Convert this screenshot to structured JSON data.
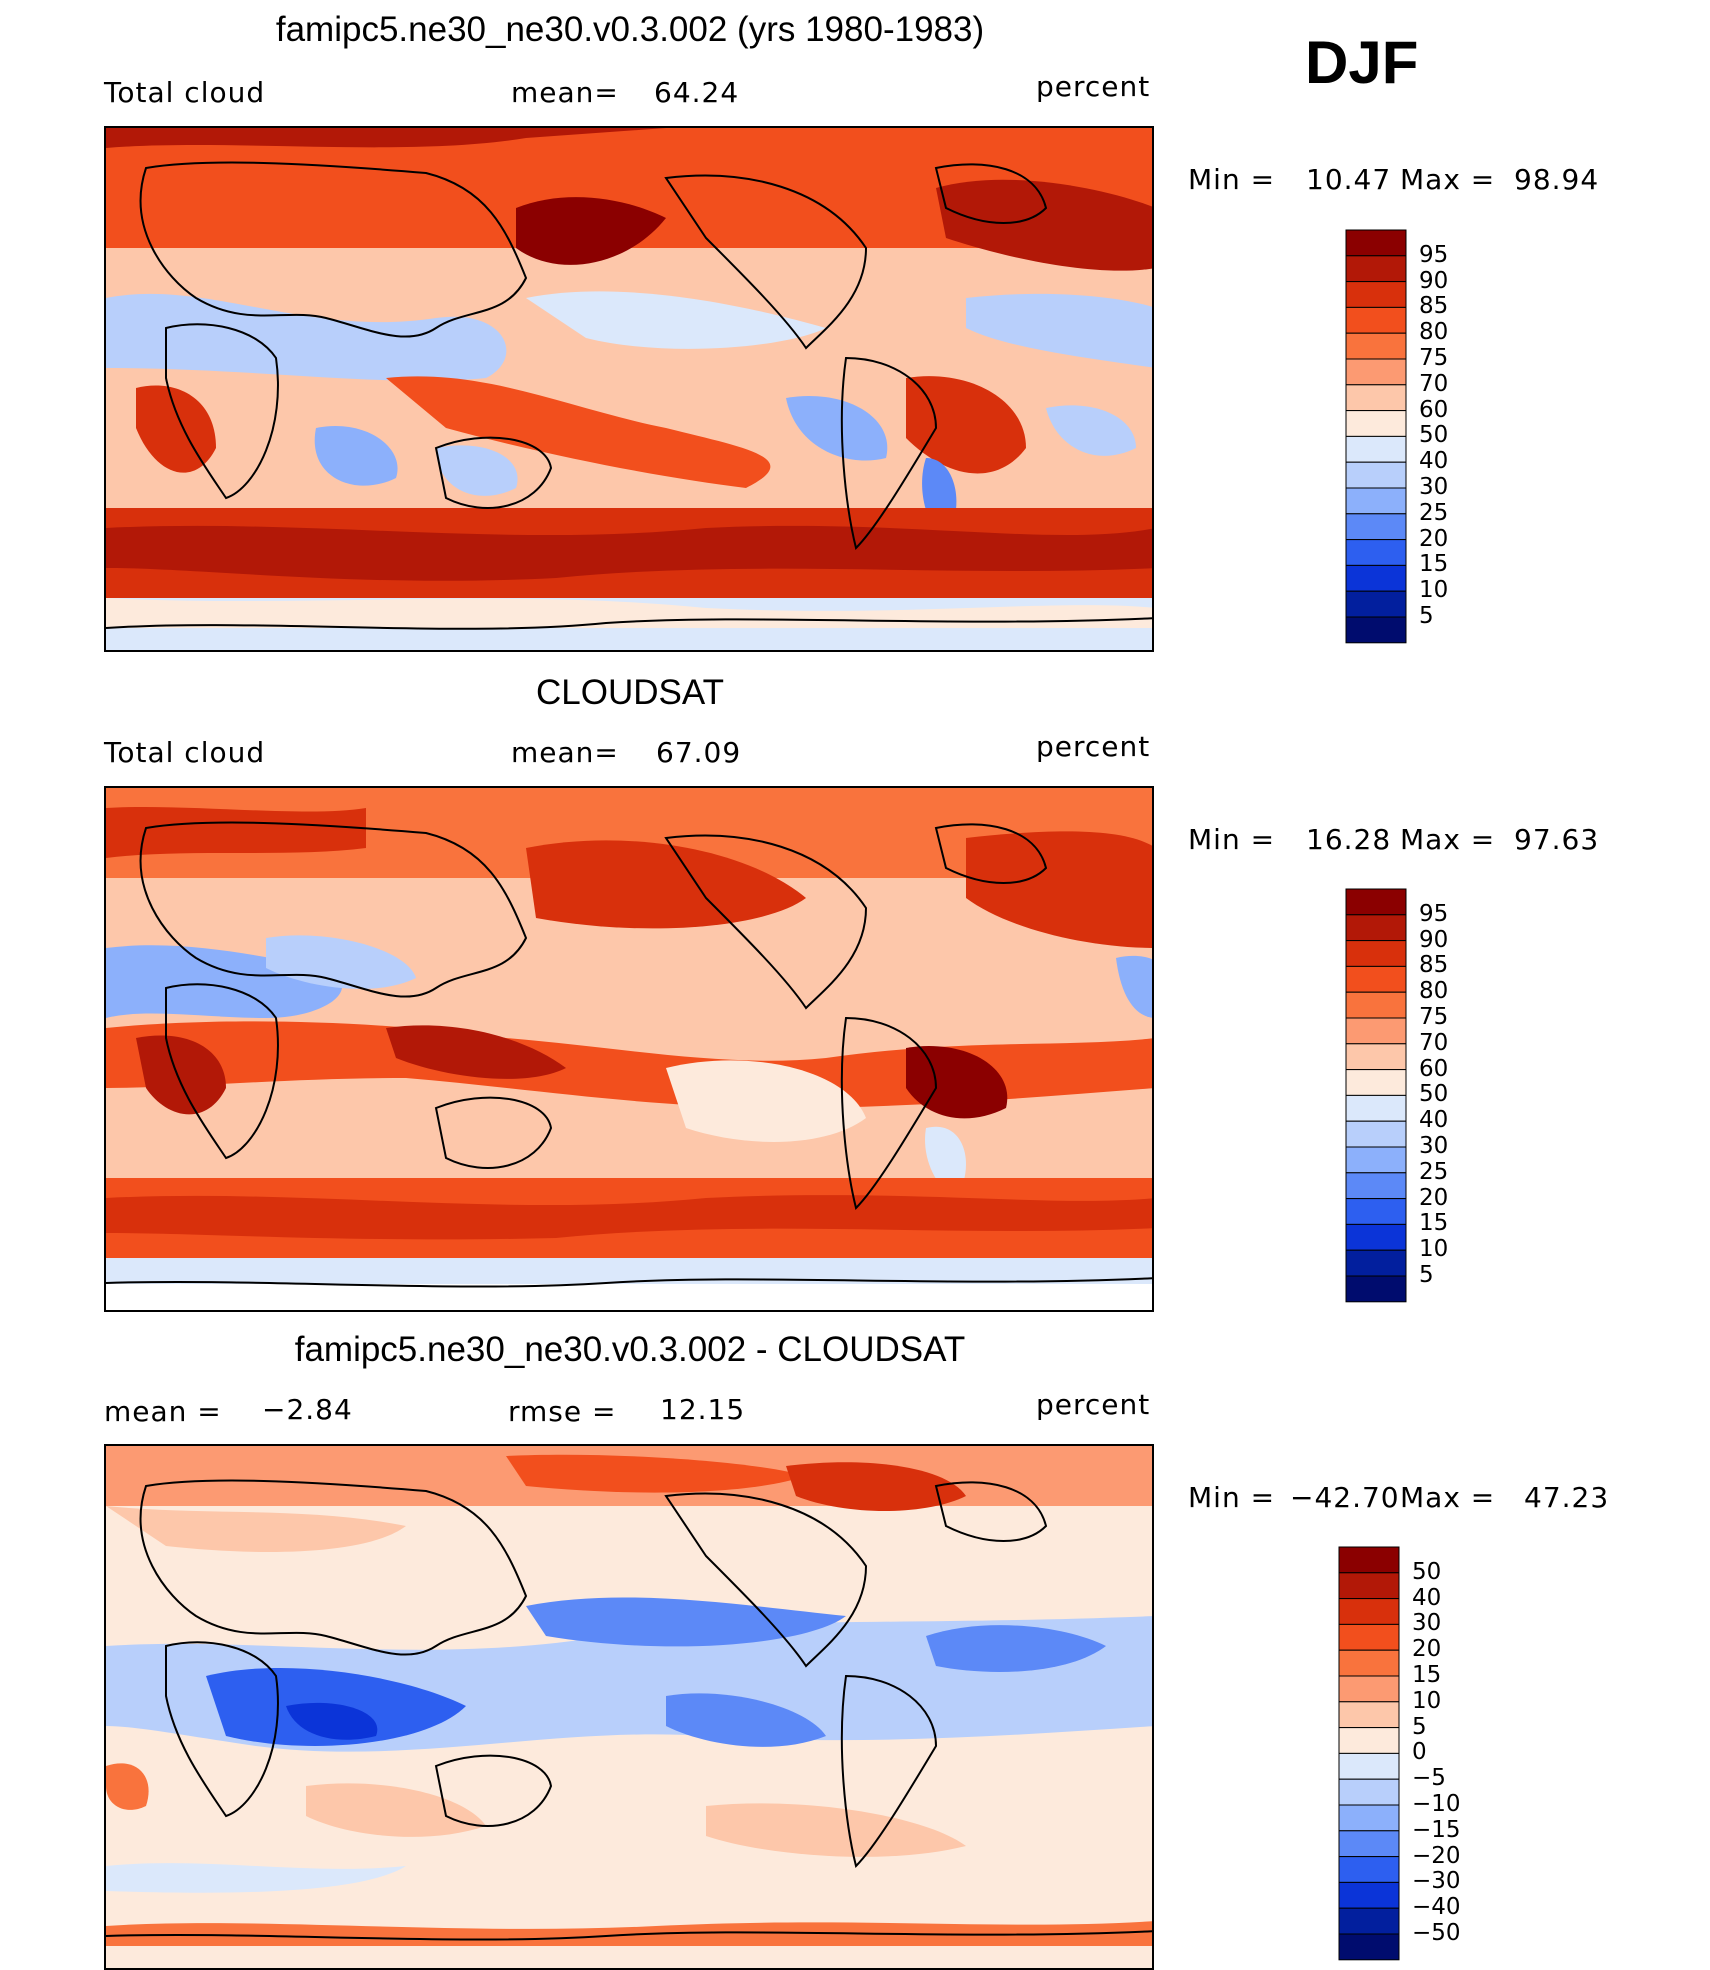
{
  "season": "DJF",
  "panels": [
    {
      "title": "famipc5.ne30_ne30.v0.3.002 (yrs 1980-1983)",
      "left_label": "Total cloud",
      "center_label": "mean=",
      "center_value": "64.24",
      "right_label": "percent",
      "minmax_label": "Min =",
      "min_value": "10.47",
      "max_label": "Max =",
      "max_value": "98.94",
      "colorbar_levels": [
        "95",
        "90",
        "85",
        "80",
        "75",
        "70",
        "60",
        "50",
        "40",
        "30",
        "25",
        "20",
        "15",
        "10",
        "5"
      ]
    },
    {
      "title": "CLOUDSAT",
      "left_label": "Total cloud",
      "center_label": "mean=",
      "center_value": "67.09",
      "right_label": "percent",
      "minmax_label": "Min =",
      "min_value": "16.28",
      "max_label": "Max =",
      "max_value": "97.63",
      "colorbar_levels": [
        "95",
        "90",
        "85",
        "80",
        "75",
        "70",
        "60",
        "50",
        "40",
        "30",
        "25",
        "20",
        "15",
        "10",
        "5"
      ]
    },
    {
      "title": "famipc5.ne30_ne30.v0.3.002 - CLOUDSAT",
      "left_label": "mean =",
      "left_value": "−2.84",
      "center_label": "rmse =",
      "center_value": "12.15",
      "right_label": "percent",
      "minmax_label": "Min =",
      "min_value": "−42.70",
      "max_label": "Max =",
      "max_value": "47.23",
      "colorbar_levels": [
        "50",
        "40",
        "30",
        "20",
        "15",
        "10",
        "5",
        "0",
        "−5",
        "−10",
        "−15",
        "−20",
        "−30",
        "−40",
        "−50"
      ]
    }
  ],
  "colors": {
    "colorbar": [
      "#8b0000",
      "#b21807",
      "#d8300c",
      "#f24f1d",
      "#f9733d",
      "#fc9a72",
      "#fdc7aa",
      "#fdeadc",
      "#dbe8fb",
      "#b8cffb",
      "#8cb0fb",
      "#5c89f7",
      "#2d5ff0",
      "#0b34d8",
      "#021f9e",
      "#000c6e"
    ],
    "ocean_bg": "#fdeadc"
  }
}
